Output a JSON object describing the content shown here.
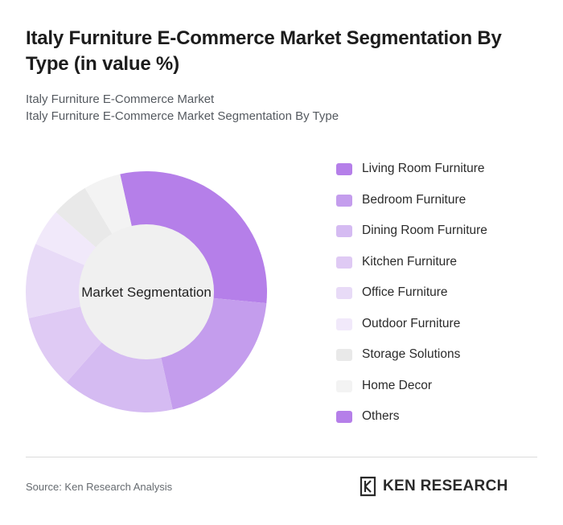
{
  "title": "Italy Furniture E-Commerce Market Segmentation By Type (in value %)",
  "subtitle": {
    "line1": "Italy Furniture E-Commerce Market",
    "line2": "Italy Furniture E-Commerce Market Segmentation By Type"
  },
  "chart_data": {
    "type": "pie",
    "center_label": "Market Segmentation",
    "categories": [
      "Living Room Furniture",
      "Bedroom Furniture",
      "Dining Room Furniture",
      "Kitchen Furniture",
      "Office Furniture",
      "Outdoor Furniture",
      "Storage Solutions",
      "Home Decor",
      "Others"
    ],
    "values": [
      30,
      20,
      15,
      10,
      10,
      5,
      5,
      5,
      0
    ],
    "colors": [
      "#b57fe9",
      "#c49ded",
      "#d5bbf2",
      "#dfcaf4",
      "#e8dbf7",
      "#f1e9fa",
      "#e9e9e9",
      "#f3f3f3",
      "#b57fe9"
    ],
    "legend_position": "right"
  },
  "footer": {
    "source": "Source: Ken Research Analysis",
    "brand": "KEN RESEARCH",
    "logo_icon": "ken-research-logo-icon"
  }
}
